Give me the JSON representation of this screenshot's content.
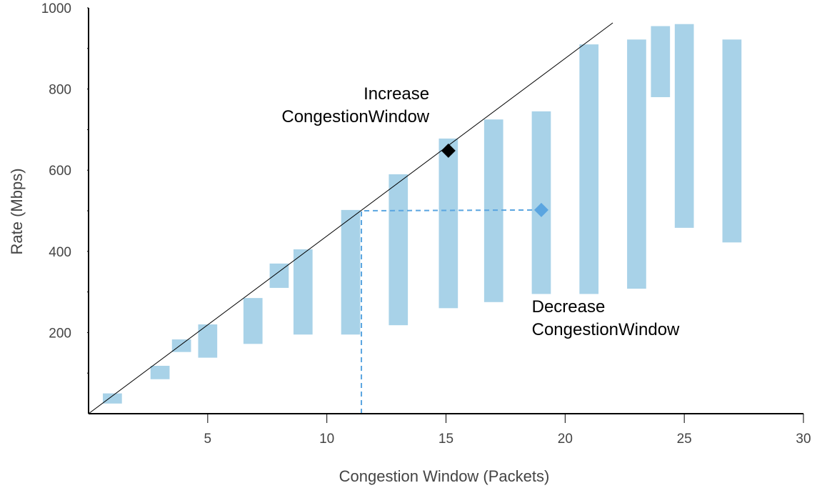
{
  "chart_data": {
    "type": "bar",
    "xlabel": "Congestion Window (Packets)",
    "ylabel": "Rate (Mbps)",
    "xlim": [
      0,
      30
    ],
    "ylim": [
      0,
      1000
    ],
    "x_ticks": [
      5,
      10,
      15,
      20,
      25,
      30
    ],
    "y_ticks": [
      200,
      400,
      600,
      800,
      1000
    ],
    "y_minor_ticks": [
      100,
      300,
      500,
      700,
      900
    ],
    "grid": false,
    "range_bar_color": "#a8d2e8",
    "range_bars": [
      {
        "x": 1.0,
        "low": 25,
        "high": 50
      },
      {
        "x": 3.0,
        "low": 85,
        "high": 118
      },
      {
        "x": 3.9,
        "low": 152,
        "high": 183
      },
      {
        "x": 5.0,
        "low": 138,
        "high": 220
      },
      {
        "x": 6.9,
        "low": 172,
        "high": 285
      },
      {
        "x": 8.0,
        "low": 310,
        "high": 370
      },
      {
        "x": 9.0,
        "low": 195,
        "high": 405
      },
      {
        "x": 11.0,
        "low": 195,
        "high": 502
      },
      {
        "x": 13.0,
        "low": 218,
        "high": 590
      },
      {
        "x": 15.1,
        "low": 260,
        "high": 678
      },
      {
        "x": 17.0,
        "low": 275,
        "high": 725
      },
      {
        "x": 19.0,
        "low": 295,
        "high": 745
      },
      {
        "x": 21.0,
        "low": 295,
        "high": 910
      },
      {
        "x": 23.0,
        "low": 308,
        "high": 922
      },
      {
        "x": 24.0,
        "low": 780,
        "high": 955
      },
      {
        "x": 25.0,
        "low": 458,
        "high": 960
      },
      {
        "x": 27.0,
        "low": 422,
        "high": 922
      }
    ],
    "bar_width": 0.8,
    "ideal_line": {
      "x": [
        0,
        22.0
      ],
      "y": [
        0,
        963
      ],
      "color": "#000000"
    },
    "markers": [
      {
        "x": 15.1,
        "y": 648,
        "color": "#000000"
      },
      {
        "x": 19.0,
        "y": 502,
        "color": "#5aa5e0"
      }
    ],
    "dashed_guide": {
      "x": [
        11.45,
        11.45,
        19.0
      ],
      "y": [
        0,
        500,
        502
      ],
      "color": "#5aa5e0"
    },
    "annotations": [
      {
        "lines": [
          "Increase",
          "CongestionWindow"
        ],
        "x": 14.3,
        "y": 775,
        "align": "right"
      },
      {
        "lines": [
          "Decrease",
          "CongestionWindow"
        ],
        "x": 18.6,
        "y": 250,
        "align": "left"
      }
    ]
  }
}
